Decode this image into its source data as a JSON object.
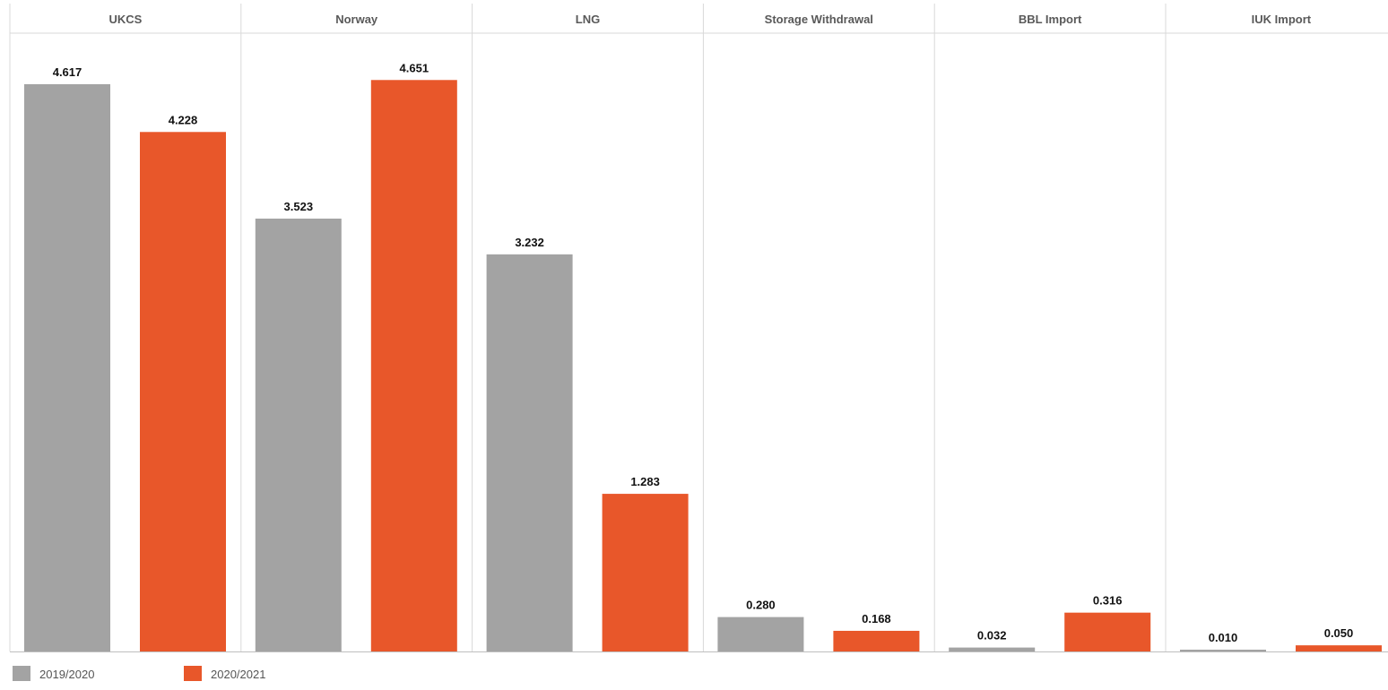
{
  "chart_data": {
    "type": "bar",
    "categories": [
      "UKCS",
      "Norway",
      "LNG",
      "Storage Withdrawal",
      "BBL Import",
      "IUK Import"
    ],
    "series": [
      {
        "name": "2019/2020",
        "color": "#a3a3a3",
        "values": [
          4.617,
          3.523,
          3.232,
          0.28,
          0.032,
          0.01
        ],
        "labels": [
          "4.617",
          "3.523",
          "3.232",
          "0.280",
          "0.032",
          "0.010"
        ]
      },
      {
        "name": "2020/2021",
        "color": "#e8572a",
        "values": [
          4.228,
          4.651,
          1.283,
          0.168,
          0.316,
          0.05
        ],
        "labels": [
          "4.228",
          "4.651",
          "1.283",
          "0.168",
          "0.316",
          "0.050"
        ]
      }
    ],
    "title": "",
    "xlabel": "",
    "ylabel": "",
    "ylim": [
      0,
      4.85
    ],
    "grid": false,
    "legend_position": "bottom-left",
    "colors": {
      "divider": "#d9d9d9",
      "baseline": "#bfbfbf"
    }
  }
}
